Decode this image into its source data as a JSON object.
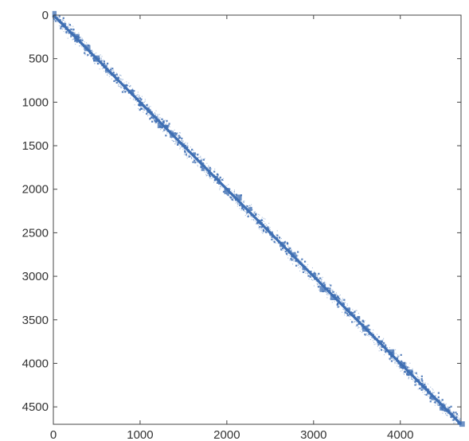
{
  "chart_data": {
    "type": "scatter",
    "title": "",
    "xlabel": "",
    "ylabel": "",
    "xlim": [
      0,
      4700
    ],
    "ylim": [
      4700,
      0
    ],
    "y_axis_direction": "top-to-bottom",
    "grid": false,
    "legend": "none",
    "marker_color": "#3f6fb3",
    "x_ticks": [
      0,
      1000,
      2000,
      3000,
      4000
    ],
    "y_ticks": [
      0,
      500,
      1000,
      1500,
      2000,
      2500,
      3000,
      3500,
      4000,
      4500
    ],
    "x_tick_labels": [
      "0",
      "1000",
      "2000",
      "3000",
      "4000"
    ],
    "y_tick_labels": [
      "0",
      "500",
      "1000",
      "1500",
      "2000",
      "2500",
      "3000",
      "3500",
      "4000",
      "4500"
    ],
    "series": [
      {
        "name": "",
        "description_of_values": "nonzero entries of a banded sparse matrix concentrated along the main diagonal",
        "x": [
          0,
          120,
          250,
          380,
          500,
          620,
          750,
          880,
          1000,
          1120,
          1250,
          1380,
          1500,
          1620,
          1750,
          1880,
          2000,
          2120,
          2250,
          2380,
          2500,
          2620,
          2750,
          2880,
          3000,
          3120,
          3250,
          3380,
          3500,
          3620,
          3750,
          3880,
          4000,
          4120,
          4250,
          4380,
          4500,
          4620,
          4700
        ],
        "y": [
          0,
          120,
          250,
          380,
          500,
          620,
          750,
          880,
          1000,
          1120,
          1250,
          1380,
          1500,
          1620,
          1750,
          1880,
          2000,
          2120,
          2250,
          2380,
          2500,
          2620,
          2750,
          2880,
          3000,
          3120,
          3250,
          3380,
          3500,
          3620,
          3750,
          3880,
          4000,
          4120,
          4250,
          4380,
          4500,
          4620,
          4700
        ],
        "band_half_width": 120
      }
    ]
  }
}
